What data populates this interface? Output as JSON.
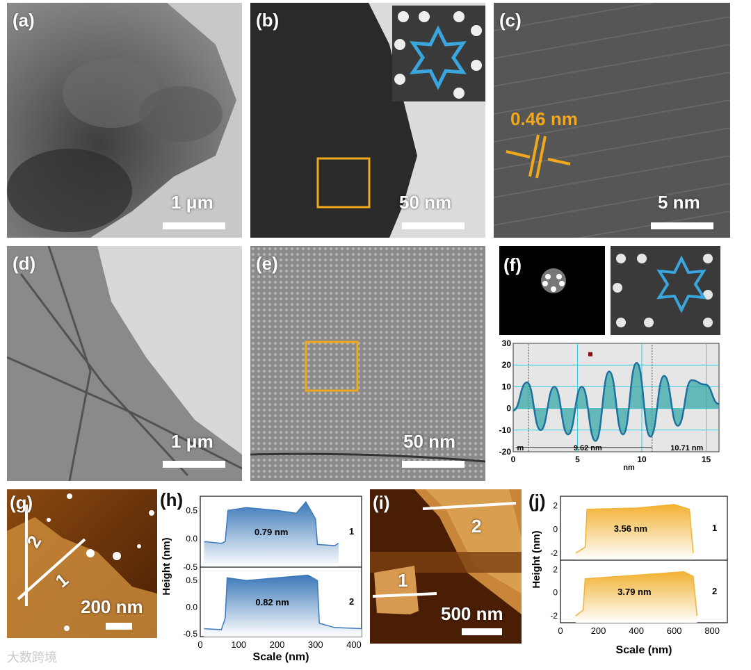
{
  "figure": {
    "panels": {
      "a": {
        "label": "(a)",
        "scale": "1 μm"
      },
      "b": {
        "label": "(b)",
        "scale": "50 nm"
      },
      "c": {
        "label": "(c)",
        "scale": "5 nm",
        "lattice": "0.46 nm"
      },
      "d": {
        "label": "(d)",
        "scale": "1 μm"
      },
      "e": {
        "label": "(e)",
        "scale": "50 nm"
      },
      "f": {
        "label": "(f)"
      },
      "g": {
        "label": "(g)",
        "scale": "200 nm",
        "line1": "1",
        "line2": "2"
      },
      "h": {
        "label": "(h)"
      },
      "i": {
        "label": "(i)",
        "scale": "500 nm",
        "line1": "1",
        "line2": "2"
      },
      "j": {
        "label": "(j)"
      }
    },
    "watermark": "大数跨境"
  },
  "colors": {
    "annotation": "#f0a81c",
    "star": "#3aa6dd",
    "afm_blue": "#3b78b8",
    "afm_orange": "#f2b233",
    "profile": "#2a8a9a"
  },
  "chart_data": [
    {
      "type": "line",
      "id": "f-profile",
      "xlabel": "nm",
      "xlim": [
        0,
        16
      ],
      "ylim": [
        -20,
        30
      ],
      "xticks": [
        "0",
        "5",
        "10",
        "15"
      ],
      "yticks": [
        "30",
        "20",
        "10",
        "0",
        "-10",
        "-20"
      ],
      "annotations": [
        "m",
        "9.62 nm",
        "10.71 nm"
      ],
      "series": [
        {
          "x": [
            0,
            1.1,
            2.3,
            3.6,
            4.9,
            6.1,
            7.3,
            8.5,
            9.7,
            10.9,
            12.1,
            13.3,
            14.6,
            15.9
          ],
          "peaks": [
            12,
            10,
            10,
            17,
            21,
            15,
            13,
            11
          ],
          "troughs": [
            -10,
            -12,
            -15,
            -12,
            -13,
            -8
          ]
        }
      ]
    },
    {
      "type": "area",
      "id": "h-profiles",
      "xlabel": "Scale (nm)",
      "ylabel": "Height (nm)",
      "xlim": [
        0,
        420
      ],
      "xticks": [
        "0",
        "100",
        "200",
        "300",
        "400"
      ],
      "yticks": [
        "0.5",
        "0.0",
        "-0.5"
      ],
      "series": [
        {
          "name": "1",
          "thickness": "0.79 nm",
          "values": [
            [
              10,
              -0.05
            ],
            [
              55,
              -0.08
            ],
            [
              65,
              -0.05
            ],
            [
              72,
              0.5
            ],
            [
              120,
              0.55
            ],
            [
              200,
              0.5
            ],
            [
              250,
              0.45
            ],
            [
              275,
              0.65
            ],
            [
              300,
              0.35
            ],
            [
              305,
              -0.1
            ],
            [
              350,
              -0.12
            ],
            [
              360,
              -0.08
            ]
          ]
        },
        {
          "name": "2",
          "thickness": "0.82 nm",
          "values": [
            [
              10,
              -0.4
            ],
            [
              55,
              -0.42
            ],
            [
              65,
              -0.2
            ],
            [
              70,
              0.55
            ],
            [
              120,
              0.5
            ],
            [
              200,
              0.55
            ],
            [
              280,
              0.6
            ],
            [
              305,
              0.5
            ],
            [
              310,
              -0.3
            ],
            [
              350,
              -0.38
            ],
            [
              420,
              -0.4
            ]
          ]
        }
      ]
    },
    {
      "type": "area",
      "id": "j-profiles",
      "xlabel": "Scale (nm)",
      "ylabel": "Height (nm)",
      "xlim": [
        0,
        880
      ],
      "xticks": [
        "0",
        "200",
        "400",
        "600",
        "800"
      ],
      "yticks": [
        "2",
        "0",
        "-2"
      ],
      "series": [
        {
          "name": "1",
          "thickness": "3.56 nm",
          "values": [
            [
              80,
              -2
            ],
            [
              130,
              -1.5
            ],
            [
              140,
              1.7
            ],
            [
              400,
              1.8
            ],
            [
              600,
              2.1
            ],
            [
              680,
              1.7
            ],
            [
              700,
              -2
            ]
          ]
        },
        {
          "name": "2",
          "thickness": "3.79 nm",
          "values": [
            [
              80,
              -2
            ],
            [
              120,
              -1.5
            ],
            [
              130,
              1.2
            ],
            [
              400,
              1.5
            ],
            [
              650,
              1.8
            ],
            [
              700,
              1.4
            ],
            [
              720,
              -2
            ]
          ]
        }
      ]
    }
  ]
}
